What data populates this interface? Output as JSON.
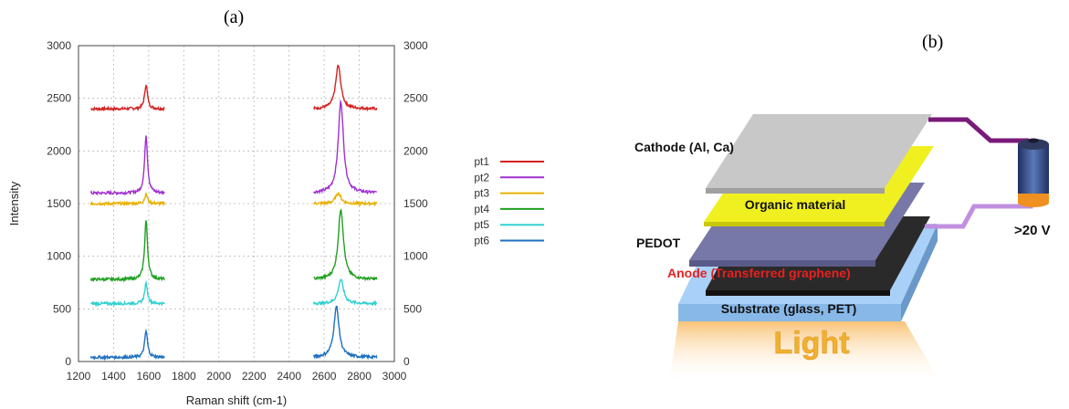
{
  "panel_a": {
    "label": "(a)",
    "chart_data": {
      "type": "line",
      "xlabel": "Raman shift (cm-1)",
      "ylabel": "Intensity",
      "xlim": [
        1200,
        3000
      ],
      "ylim": [
        0,
        3000
      ],
      "x_ticks": [
        1200,
        1400,
        1600,
        1800,
        2000,
        2200,
        2400,
        2600,
        2800,
        3000
      ],
      "y_ticks": [
        0,
        500,
        1000,
        1500,
        2000,
        2500,
        3000
      ],
      "grid": true,
      "legend_position": "right",
      "segments": [
        [
          1270,
          1690
        ],
        [
          2540,
          2900
        ]
      ],
      "series": [
        {
          "name": "pt1",
          "color": "#d42020",
          "baseline": 2400,
          "g_peak": 2630,
          "twod_peak": 2810
        },
        {
          "name": "pt2",
          "color": "#a030d0",
          "baseline": 1600,
          "g_peak": 2150,
          "twod_peak": 2470
        },
        {
          "name": "pt3",
          "color": "#e8b000",
          "baseline": 1500,
          "g_peak": 1590,
          "twod_peak": 1600
        },
        {
          "name": "pt4",
          "color": "#20a020",
          "baseline": 780,
          "g_peak": 1340,
          "twod_peak": 1450
        },
        {
          "name": "pt5",
          "color": "#30d0d0",
          "baseline": 550,
          "g_peak": 740,
          "twod_peak": 780
        },
        {
          "name": "pt6",
          "color": "#1e70c0",
          "baseline": 40,
          "g_peak": 290,
          "twod_peak": 520
        }
      ],
      "g_position": 1585,
      "twod_positions": [
        2680,
        2695,
        2680,
        2695,
        2695,
        2670
      ]
    }
  },
  "panel_b": {
    "label": "(b)",
    "layers": {
      "cathode": "Cathode (Al, Ca)",
      "organic": "Organic material",
      "pedot": "PEDOT",
      "anode": "Anode (Transferred graphene)",
      "substrate": "Substrate (glass, PET)"
    },
    "light": "Light",
    "voltage": ">20 V",
    "colors": {
      "cathode": "#c8c8c8",
      "organic": "#f0f020",
      "pedot": "#7878a8",
      "anode": "#2a2a2a",
      "substrate": "#a8d0f8",
      "wire": "#7a1a7a",
      "wire_light": "#c090e0",
      "light_text": "#f0b030",
      "anode_text": "#e82020"
    }
  }
}
